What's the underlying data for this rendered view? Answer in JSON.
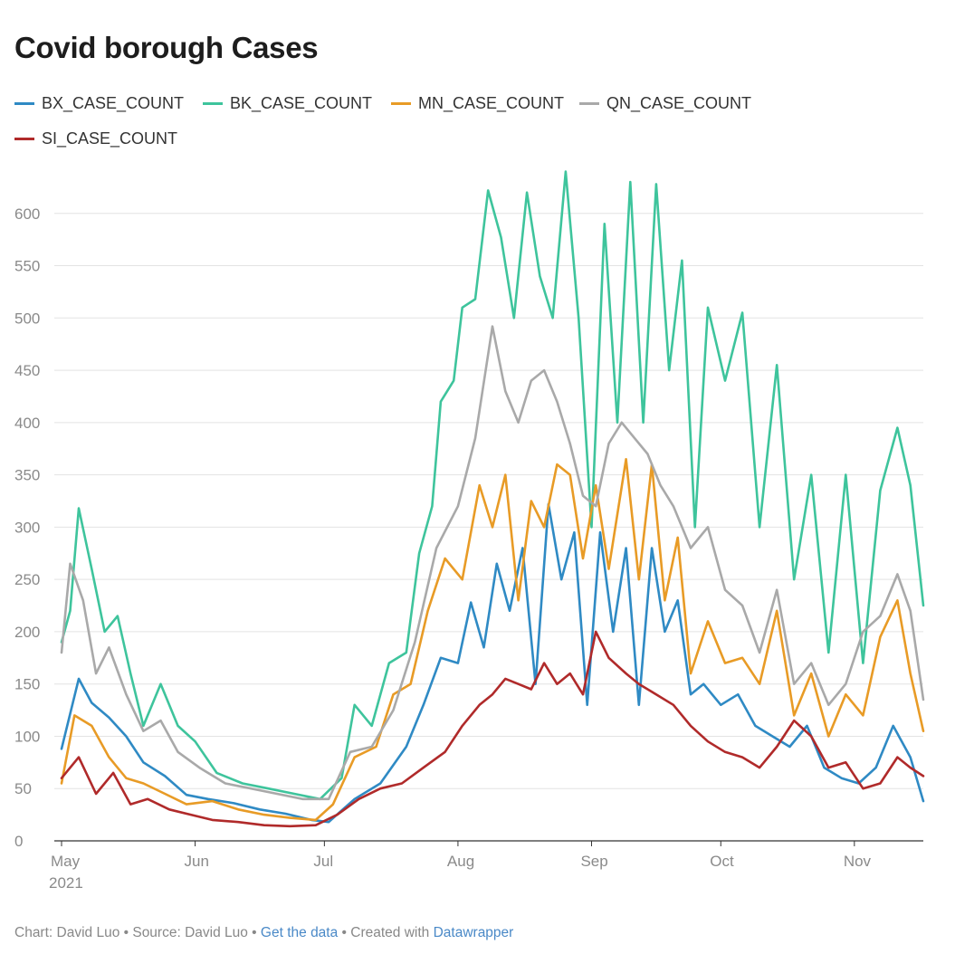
{
  "title": "Covid borough Cases",
  "footer": {
    "prefix": "Chart: David Luo • Source: David Luo • ",
    "link1": "Get the data",
    "mid": " • Created with ",
    "link2": "Datawrapper"
  },
  "chart_data": {
    "type": "line",
    "title": "Covid borough Cases",
    "xlabel": "",
    "ylabel": "",
    "xlim": [
      "2021-05-01",
      "2021-11-17"
    ],
    "ylim": [
      0,
      650
    ],
    "y_ticks": [
      0,
      50,
      100,
      150,
      200,
      250,
      300,
      350,
      400,
      450,
      500,
      550,
      600
    ],
    "x_ticks": [
      {
        "date": "2021-05-01",
        "label": "May",
        "sublabel": "2021"
      },
      {
        "date": "2021-06-01",
        "label": "Jun"
      },
      {
        "date": "2021-07-01",
        "label": "Jul"
      },
      {
        "date": "2021-08-01",
        "label": "Aug"
      },
      {
        "date": "2021-09-01",
        "label": "Sep"
      },
      {
        "date": "2021-10-01",
        "label": "Oct"
      },
      {
        "date": "2021-11-01",
        "label": "Nov"
      }
    ],
    "grid": true,
    "legend_position": "top",
    "series": [
      {
        "name": "BX_CASE_COUNT",
        "color": "#2f8ac4",
        "points": [
          [
            "2021-05-01",
            88
          ],
          [
            "2021-05-05",
            155
          ],
          [
            "2021-05-08",
            132
          ],
          [
            "2021-05-12",
            118
          ],
          [
            "2021-05-16",
            100
          ],
          [
            "2021-05-20",
            75
          ],
          [
            "2021-05-25",
            62
          ],
          [
            "2021-05-30",
            44
          ],
          [
            "2021-06-04",
            40
          ],
          [
            "2021-06-10",
            36
          ],
          [
            "2021-06-16",
            30
          ],
          [
            "2021-06-22",
            26
          ],
          [
            "2021-06-28",
            20
          ],
          [
            "2021-07-02",
            18
          ],
          [
            "2021-07-08",
            40
          ],
          [
            "2021-07-14",
            55
          ],
          [
            "2021-07-20",
            90
          ],
          [
            "2021-07-24",
            130
          ],
          [
            "2021-07-28",
            175
          ],
          [
            "2021-08-01",
            170
          ],
          [
            "2021-08-04",
            228
          ],
          [
            "2021-08-07",
            185
          ],
          [
            "2021-08-10",
            265
          ],
          [
            "2021-08-13",
            220
          ],
          [
            "2021-08-16",
            280
          ],
          [
            "2021-08-19",
            150
          ],
          [
            "2021-08-22",
            322
          ],
          [
            "2021-08-25",
            250
          ],
          [
            "2021-08-28",
            295
          ],
          [
            "2021-08-31",
            130
          ],
          [
            "2021-09-03",
            295
          ],
          [
            "2021-09-06",
            200
          ],
          [
            "2021-09-09",
            280
          ],
          [
            "2021-09-12",
            130
          ],
          [
            "2021-09-15",
            280
          ],
          [
            "2021-09-18",
            200
          ],
          [
            "2021-09-21",
            230
          ],
          [
            "2021-09-24",
            140
          ],
          [
            "2021-09-27",
            150
          ],
          [
            "2021-10-01",
            130
          ],
          [
            "2021-10-05",
            140
          ],
          [
            "2021-10-09",
            110
          ],
          [
            "2021-10-13",
            100
          ],
          [
            "2021-10-17",
            90
          ],
          [
            "2021-10-21",
            110
          ],
          [
            "2021-10-25",
            70
          ],
          [
            "2021-10-29",
            60
          ],
          [
            "2021-11-02",
            55
          ],
          [
            "2021-11-06",
            70
          ],
          [
            "2021-11-10",
            110
          ],
          [
            "2021-11-14",
            80
          ],
          [
            "2021-11-17",
            38
          ]
        ]
      },
      {
        "name": "BK_CASE_COUNT",
        "color": "#3ec49c",
        "points": [
          [
            "2021-05-01",
            190
          ],
          [
            "2021-05-03",
            220
          ],
          [
            "2021-05-05",
            318
          ],
          [
            "2021-05-08",
            260
          ],
          [
            "2021-05-11",
            200
          ],
          [
            "2021-05-14",
            215
          ],
          [
            "2021-05-17",
            160
          ],
          [
            "2021-05-20",
            110
          ],
          [
            "2021-05-24",
            150
          ],
          [
            "2021-05-28",
            110
          ],
          [
            "2021-06-01",
            95
          ],
          [
            "2021-06-06",
            65
          ],
          [
            "2021-06-12",
            55
          ],
          [
            "2021-06-18",
            50
          ],
          [
            "2021-06-24",
            45
          ],
          [
            "2021-06-30",
            40
          ],
          [
            "2021-07-05",
            60
          ],
          [
            "2021-07-08",
            130
          ],
          [
            "2021-07-12",
            110
          ],
          [
            "2021-07-16",
            170
          ],
          [
            "2021-07-20",
            180
          ],
          [
            "2021-07-23",
            275
          ],
          [
            "2021-07-26",
            320
          ],
          [
            "2021-07-28",
            420
          ],
          [
            "2021-07-31",
            440
          ],
          [
            "2021-08-02",
            510
          ],
          [
            "2021-08-05",
            518
          ],
          [
            "2021-08-08",
            622
          ],
          [
            "2021-08-11",
            577
          ],
          [
            "2021-08-14",
            500
          ],
          [
            "2021-08-17",
            620
          ],
          [
            "2021-08-20",
            540
          ],
          [
            "2021-08-23",
            500
          ],
          [
            "2021-08-26",
            640
          ],
          [
            "2021-08-29",
            500
          ],
          [
            "2021-09-01",
            300
          ],
          [
            "2021-09-04",
            590
          ],
          [
            "2021-09-07",
            400
          ],
          [
            "2021-09-10",
            630
          ],
          [
            "2021-09-13",
            400
          ],
          [
            "2021-09-16",
            628
          ],
          [
            "2021-09-19",
            450
          ],
          [
            "2021-09-22",
            555
          ],
          [
            "2021-09-25",
            300
          ],
          [
            "2021-09-28",
            510
          ],
          [
            "2021-10-02",
            440
          ],
          [
            "2021-10-06",
            505
          ],
          [
            "2021-10-10",
            300
          ],
          [
            "2021-10-14",
            455
          ],
          [
            "2021-10-18",
            250
          ],
          [
            "2021-10-22",
            350
          ],
          [
            "2021-10-26",
            180
          ],
          [
            "2021-10-30",
            350
          ],
          [
            "2021-11-03",
            170
          ],
          [
            "2021-11-07",
            335
          ],
          [
            "2021-11-11",
            395
          ],
          [
            "2021-11-14",
            340
          ],
          [
            "2021-11-17",
            225
          ]
        ]
      },
      {
        "name": "MN_CASE_COUNT",
        "color": "#e89b26",
        "points": [
          [
            "2021-05-01",
            55
          ],
          [
            "2021-05-04",
            120
          ],
          [
            "2021-05-08",
            110
          ],
          [
            "2021-05-12",
            80
          ],
          [
            "2021-05-16",
            60
          ],
          [
            "2021-05-20",
            55
          ],
          [
            "2021-05-25",
            45
          ],
          [
            "2021-05-30",
            35
          ],
          [
            "2021-06-05",
            38
          ],
          [
            "2021-06-11",
            30
          ],
          [
            "2021-06-17",
            25
          ],
          [
            "2021-06-23",
            22
          ],
          [
            "2021-06-29",
            20
          ],
          [
            "2021-07-03",
            35
          ],
          [
            "2021-07-08",
            80
          ],
          [
            "2021-07-13",
            90
          ],
          [
            "2021-07-17",
            140
          ],
          [
            "2021-07-21",
            150
          ],
          [
            "2021-07-25",
            220
          ],
          [
            "2021-07-29",
            270
          ],
          [
            "2021-08-02",
            250
          ],
          [
            "2021-08-06",
            340
          ],
          [
            "2021-08-09",
            300
          ],
          [
            "2021-08-12",
            350
          ],
          [
            "2021-08-15",
            230
          ],
          [
            "2021-08-18",
            325
          ],
          [
            "2021-08-21",
            300
          ],
          [
            "2021-08-24",
            360
          ],
          [
            "2021-08-27",
            350
          ],
          [
            "2021-08-30",
            270
          ],
          [
            "2021-09-02",
            340
          ],
          [
            "2021-09-05",
            260
          ],
          [
            "2021-09-09",
            365
          ],
          [
            "2021-09-12",
            250
          ],
          [
            "2021-09-15",
            360
          ],
          [
            "2021-09-18",
            230
          ],
          [
            "2021-09-21",
            290
          ],
          [
            "2021-09-24",
            160
          ],
          [
            "2021-09-28",
            210
          ],
          [
            "2021-10-02",
            170
          ],
          [
            "2021-10-06",
            175
          ],
          [
            "2021-10-10",
            150
          ],
          [
            "2021-10-14",
            220
          ],
          [
            "2021-10-18",
            120
          ],
          [
            "2021-10-22",
            160
          ],
          [
            "2021-10-26",
            100
          ],
          [
            "2021-10-30",
            140
          ],
          [
            "2021-11-03",
            120
          ],
          [
            "2021-11-07",
            195
          ],
          [
            "2021-11-11",
            230
          ],
          [
            "2021-11-14",
            160
          ],
          [
            "2021-11-17",
            105
          ]
        ]
      },
      {
        "name": "QN_CASE_COUNT",
        "color": "#a9a9a9",
        "points": [
          [
            "2021-05-01",
            180
          ],
          [
            "2021-05-03",
            265
          ],
          [
            "2021-05-06",
            230
          ],
          [
            "2021-05-09",
            160
          ],
          [
            "2021-05-12",
            185
          ],
          [
            "2021-05-16",
            140
          ],
          [
            "2021-05-20",
            105
          ],
          [
            "2021-05-24",
            115
          ],
          [
            "2021-05-28",
            85
          ],
          [
            "2021-06-02",
            70
          ],
          [
            "2021-06-08",
            55
          ],
          [
            "2021-06-14",
            50
          ],
          [
            "2021-06-20",
            45
          ],
          [
            "2021-06-26",
            40
          ],
          [
            "2021-07-02",
            40
          ],
          [
            "2021-07-07",
            85
          ],
          [
            "2021-07-12",
            90
          ],
          [
            "2021-07-17",
            125
          ],
          [
            "2021-07-22",
            190
          ],
          [
            "2021-07-27",
            280
          ],
          [
            "2021-08-01",
            320
          ],
          [
            "2021-08-05",
            385
          ],
          [
            "2021-08-09",
            492
          ],
          [
            "2021-08-12",
            430
          ],
          [
            "2021-08-15",
            400
          ],
          [
            "2021-08-18",
            440
          ],
          [
            "2021-08-21",
            450
          ],
          [
            "2021-08-24",
            420
          ],
          [
            "2021-08-27",
            380
          ],
          [
            "2021-08-30",
            330
          ],
          [
            "2021-09-02",
            320
          ],
          [
            "2021-09-05",
            380
          ],
          [
            "2021-09-08",
            400
          ],
          [
            "2021-09-11",
            385
          ],
          [
            "2021-09-14",
            370
          ],
          [
            "2021-09-17",
            340
          ],
          [
            "2021-09-20",
            320
          ],
          [
            "2021-09-24",
            280
          ],
          [
            "2021-09-28",
            300
          ],
          [
            "2021-10-02",
            240
          ],
          [
            "2021-10-06",
            225
          ],
          [
            "2021-10-10",
            180
          ],
          [
            "2021-10-14",
            240
          ],
          [
            "2021-10-18",
            150
          ],
          [
            "2021-10-22",
            170
          ],
          [
            "2021-10-26",
            130
          ],
          [
            "2021-10-30",
            150
          ],
          [
            "2021-11-03",
            200
          ],
          [
            "2021-11-07",
            215
          ],
          [
            "2021-11-11",
            255
          ],
          [
            "2021-11-14",
            220
          ],
          [
            "2021-11-17",
            135
          ]
        ]
      },
      {
        "name": "SI_CASE_COUNT",
        "color": "#b02a2a",
        "points": [
          [
            "2021-05-01",
            60
          ],
          [
            "2021-05-05",
            80
          ],
          [
            "2021-05-09",
            45
          ],
          [
            "2021-05-13",
            65
          ],
          [
            "2021-05-17",
            35
          ],
          [
            "2021-05-21",
            40
          ],
          [
            "2021-05-26",
            30
          ],
          [
            "2021-05-31",
            25
          ],
          [
            "2021-06-05",
            20
          ],
          [
            "2021-06-11",
            18
          ],
          [
            "2021-06-17",
            15
          ],
          [
            "2021-06-23",
            14
          ],
          [
            "2021-06-29",
            15
          ],
          [
            "2021-07-04",
            25
          ],
          [
            "2021-07-09",
            40
          ],
          [
            "2021-07-14",
            50
          ],
          [
            "2021-07-19",
            55
          ],
          [
            "2021-07-24",
            70
          ],
          [
            "2021-07-29",
            85
          ],
          [
            "2021-08-02",
            110
          ],
          [
            "2021-08-06",
            130
          ],
          [
            "2021-08-09",
            140
          ],
          [
            "2021-08-12",
            155
          ],
          [
            "2021-08-15",
            150
          ],
          [
            "2021-08-18",
            145
          ],
          [
            "2021-08-21",
            170
          ],
          [
            "2021-08-24",
            150
          ],
          [
            "2021-08-27",
            160
          ],
          [
            "2021-08-30",
            140
          ],
          [
            "2021-09-02",
            200
          ],
          [
            "2021-09-05",
            175
          ],
          [
            "2021-09-09",
            160
          ],
          [
            "2021-09-12",
            150
          ],
          [
            "2021-09-16",
            140
          ],
          [
            "2021-09-20",
            130
          ],
          [
            "2021-09-24",
            110
          ],
          [
            "2021-09-28",
            95
          ],
          [
            "2021-10-02",
            85
          ],
          [
            "2021-10-06",
            80
          ],
          [
            "2021-10-10",
            70
          ],
          [
            "2021-10-14",
            90
          ],
          [
            "2021-10-18",
            115
          ],
          [
            "2021-10-22",
            100
          ],
          [
            "2021-10-26",
            70
          ],
          [
            "2021-10-30",
            75
          ],
          [
            "2021-11-03",
            50
          ],
          [
            "2021-11-07",
            55
          ],
          [
            "2021-11-11",
            80
          ],
          [
            "2021-11-14",
            70
          ],
          [
            "2021-11-17",
            62
          ]
        ]
      }
    ]
  }
}
